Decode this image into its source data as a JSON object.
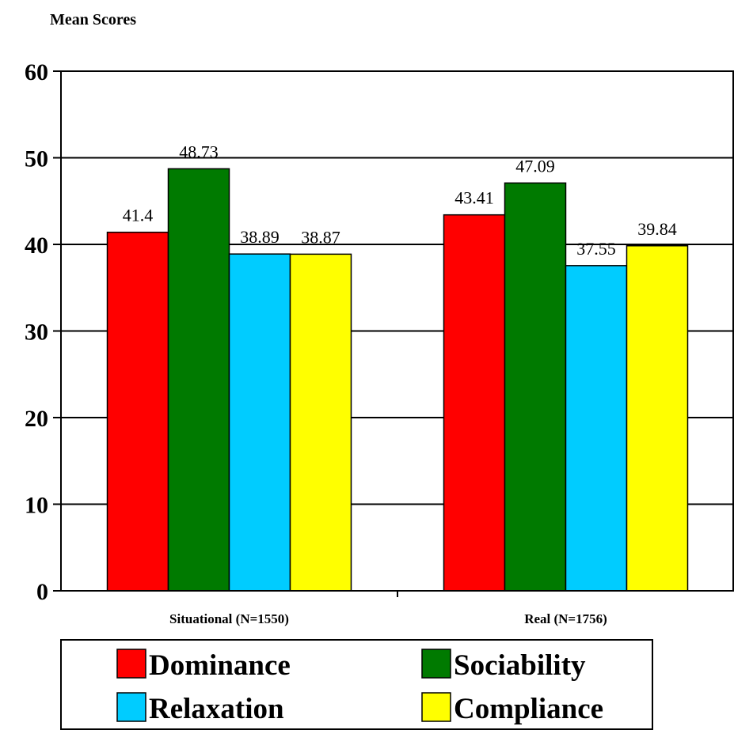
{
  "chart_data": {
    "type": "bar",
    "title": "",
    "ylabel": "Mean Scores",
    "xlabel": "",
    "ylim": [
      0,
      60
    ],
    "yticks": [
      0,
      10,
      20,
      30,
      40,
      50,
      60
    ],
    "grid": true,
    "legend_position": "bottom",
    "categories": [
      "Situational (N=1550)",
      "Real (N=1756)"
    ],
    "series": [
      {
        "name": "Dominance",
        "color": "#ff0000",
        "values": [
          41.4,
          43.41
        ],
        "labels": [
          "41.4",
          "43.41"
        ]
      },
      {
        "name": "Sociability",
        "color": "#007a00",
        "values": [
          48.73,
          47.09
        ],
        "labels": [
          "48.73",
          "47.09"
        ]
      },
      {
        "name": "Relaxation",
        "color": "#00ccff",
        "values": [
          38.89,
          37.55
        ],
        "labels": [
          "38.89",
          "37.55"
        ]
      },
      {
        "name": "Compliance",
        "color": "#ffff00",
        "values": [
          38.87,
          39.84
        ],
        "labels": [
          "38.87",
          "39.84"
        ]
      }
    ]
  }
}
